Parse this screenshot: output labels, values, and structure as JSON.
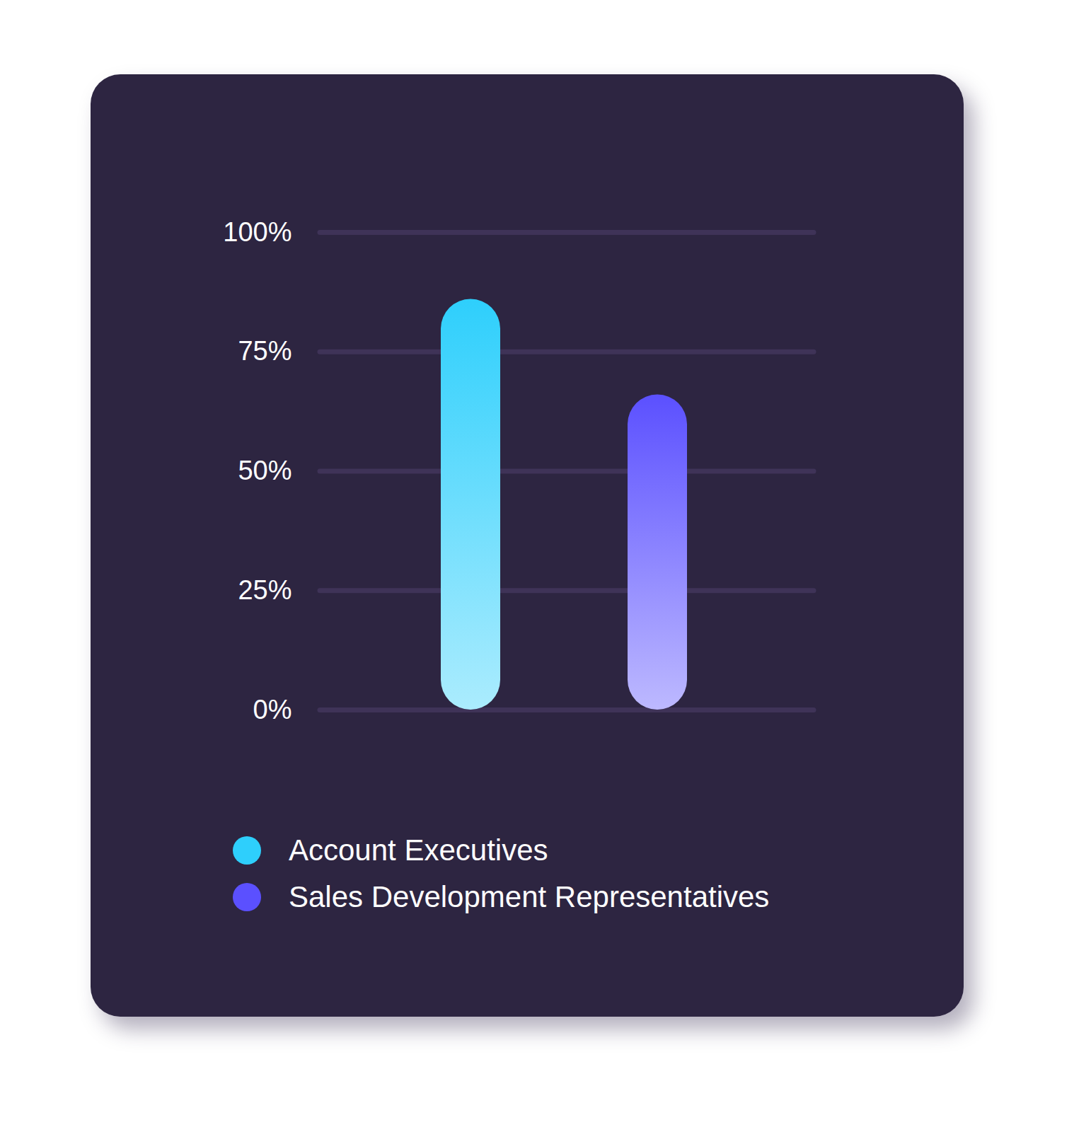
{
  "chart_data": {
    "type": "bar",
    "categories": [
      null
    ],
    "series": [
      {
        "name": "Account Executives",
        "color": "#2ecffc",
        "values": [
          86
        ]
      },
      {
        "name": "Sales Development Representatives",
        "color": "#5b50ff",
        "values": [
          66
        ]
      }
    ],
    "ylim": [
      0,
      100
    ],
    "yticks": [
      {
        "value": 0,
        "label": "0%"
      },
      {
        "value": 25,
        "label": "25%"
      },
      {
        "value": 50,
        "label": "50%"
      },
      {
        "value": 75,
        "label": "75%"
      },
      {
        "value": 100,
        "label": "100%"
      }
    ],
    "grid": true,
    "tick_labels": "y",
    "legend": "bottom-left",
    "data_labels": false
  }
}
